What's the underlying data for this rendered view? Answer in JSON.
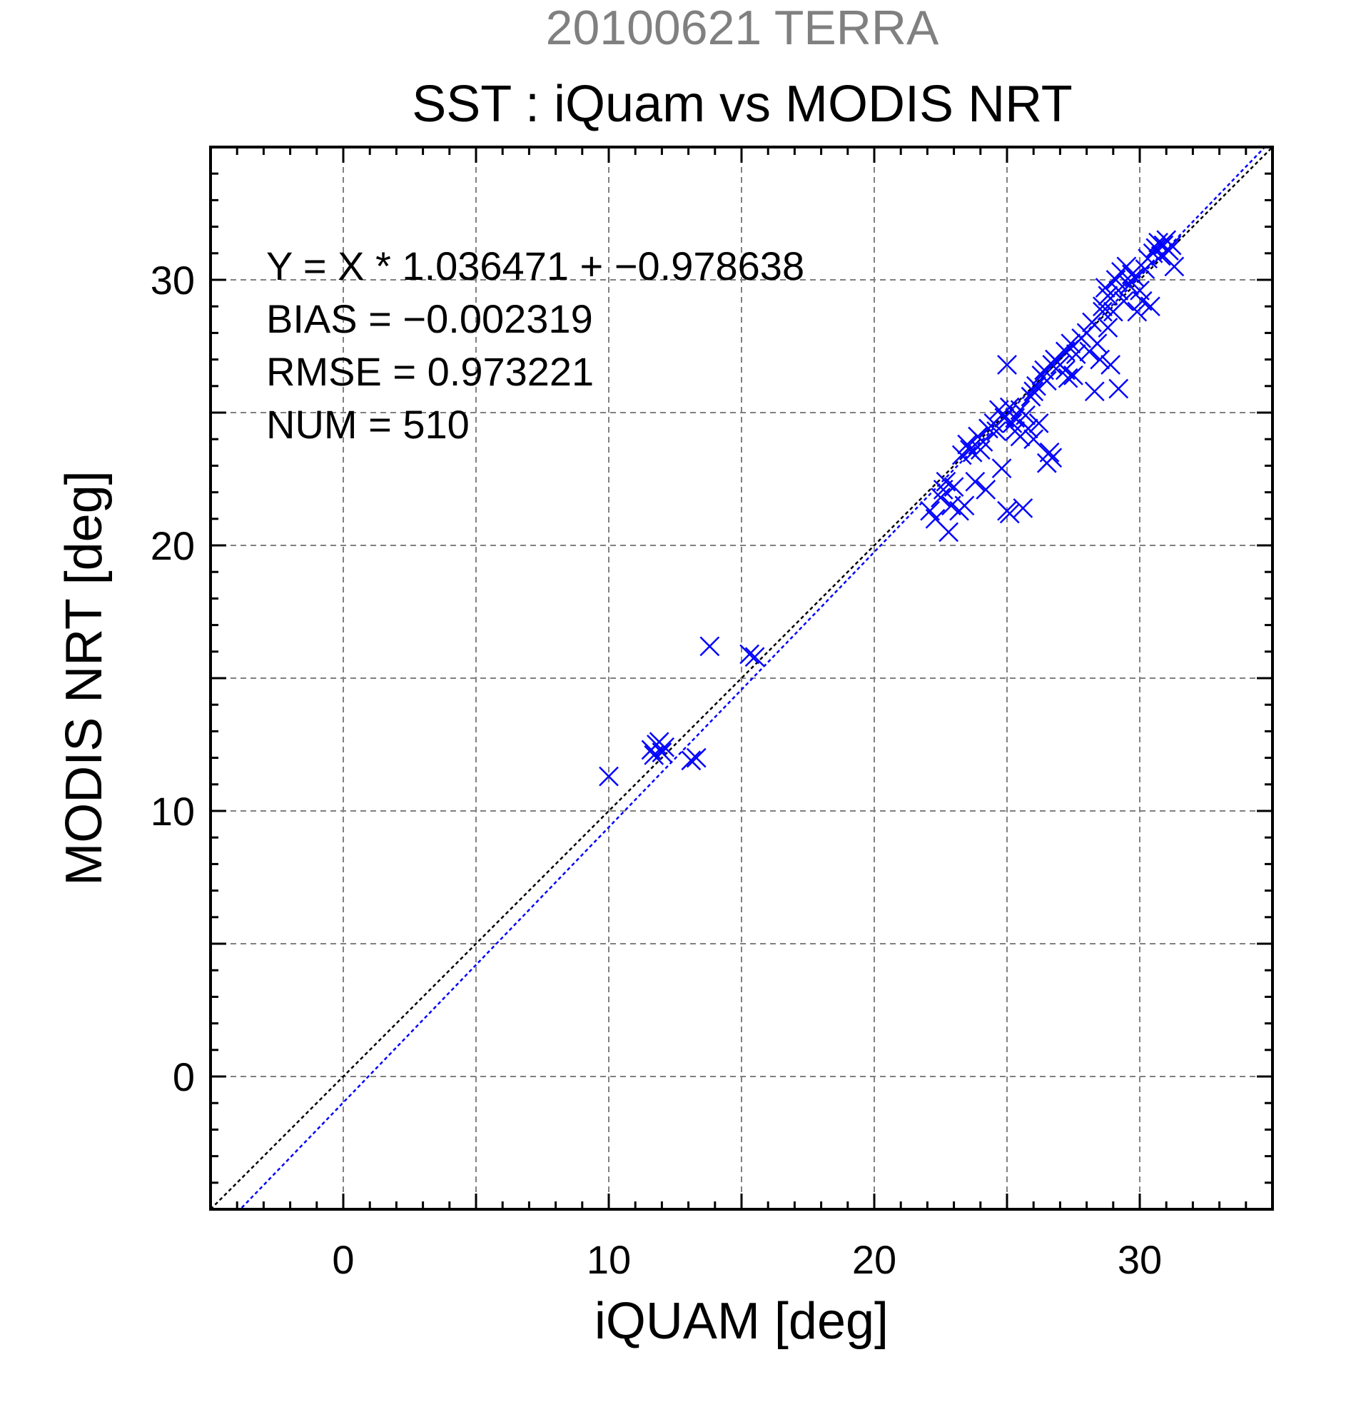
{
  "header": {
    "date_title": "20100621 TERRA",
    "main_title": "SST : iQuam vs MODIS NRT"
  },
  "colors": {
    "points": "#0000ff",
    "regression_line": "#0000ff",
    "identity_line": "#000000",
    "grid": "#808080",
    "date_title": "#808080"
  },
  "chart_data": {
    "type": "scatter",
    "title": "SST : iQuam vs MODIS NRT",
    "subtitle": "20100621 TERRA",
    "xlabel": "iQUAM [deg]",
    "ylabel": "MODIS NRT [deg]",
    "xlim": [
      -5,
      35
    ],
    "ylim": [
      -5,
      35
    ],
    "xticks": [
      0,
      10,
      20,
      30
    ],
    "yticks": [
      0,
      10,
      20,
      30
    ],
    "minor_tick_step": 1,
    "grid": true,
    "grid_step": 5,
    "marker": "x",
    "stats": [
      "Y = X * 1.036471 + −0.978638",
      "BIAS = −0.002319",
      "RMSE = 0.973221",
      "NUM = 510"
    ],
    "regression": {
      "slope": 1.036471,
      "intercept": -0.978638
    },
    "identity_line": {
      "slope": 1,
      "intercept": 0
    },
    "series": [
      {
        "points": [
          [
            10.0,
            11.3
          ],
          [
            11.6,
            12.3
          ],
          [
            11.8,
            12.5
          ],
          [
            12.0,
            12.2
          ],
          [
            11.9,
            12.6
          ],
          [
            11.7,
            12.1
          ],
          [
            12.1,
            12.4
          ],
          [
            13.1,
            11.9
          ],
          [
            13.3,
            12.0
          ],
          [
            13.8,
            16.2
          ],
          [
            15.3,
            15.9
          ],
          [
            15.5,
            15.8
          ],
          [
            22.1,
            21.3
          ],
          [
            22.3,
            21.0
          ],
          [
            22.5,
            21.8
          ],
          [
            22.6,
            22.1
          ],
          [
            22.8,
            20.5
          ],
          [
            22.9,
            21.5
          ],
          [
            23.2,
            21.3
          ],
          [
            23.4,
            21.5
          ],
          [
            22.7,
            22.4
          ],
          [
            23.0,
            22.2
          ],
          [
            23.3,
            23.4
          ],
          [
            23.5,
            23.8
          ],
          [
            23.7,
            23.5
          ],
          [
            23.9,
            24.1
          ],
          [
            24.1,
            23.9
          ],
          [
            24.3,
            24.4
          ],
          [
            24.0,
            23.6
          ],
          [
            23.6,
            23.6
          ],
          [
            23.8,
            22.4
          ],
          [
            24.2,
            22.1
          ],
          [
            24.8,
            22.9
          ],
          [
            25.0,
            21.3
          ],
          [
            25.1,
            21.2
          ],
          [
            25.6,
            21.4
          ],
          [
            25.3,
            24.3
          ],
          [
            25.5,
            24.1
          ],
          [
            24.5,
            24.6
          ],
          [
            24.7,
            25.1
          ],
          [
            24.9,
            24.8
          ],
          [
            25.1,
            25.2
          ],
          [
            25.3,
            24.8
          ],
          [
            25.5,
            25.1
          ],
          [
            25.7,
            24.9
          ],
          [
            24.6,
            24.3
          ],
          [
            25.2,
            24.6
          ],
          [
            26.5,
            23.1
          ],
          [
            26.6,
            23.5
          ],
          [
            26.7,
            23.3
          ],
          [
            25.8,
            24.4
          ],
          [
            26.0,
            24.0
          ],
          [
            26.2,
            24.6
          ],
          [
            25.9,
            25.6
          ],
          [
            26.1,
            26.0
          ],
          [
            26.3,
            26.4
          ],
          [
            26.5,
            26.2
          ],
          [
            26.7,
            26.8
          ],
          [
            26.4,
            26.6
          ],
          [
            26.0,
            25.8
          ],
          [
            25.0,
            26.8
          ],
          [
            26.8,
            27.0
          ],
          [
            27.0,
            26.8
          ],
          [
            27.2,
            27.3
          ],
          [
            27.4,
            27.6
          ],
          [
            27.6,
            27.2
          ],
          [
            27.8,
            27.8
          ],
          [
            27.3,
            26.3
          ],
          [
            27.5,
            26.4
          ],
          [
            27.2,
            26.6
          ],
          [
            28.0,
            28.0
          ],
          [
            28.2,
            28.4
          ],
          [
            28.4,
            27.6
          ],
          [
            28.6,
            28.8
          ],
          [
            28.8,
            28.2
          ],
          [
            28.1,
            27.3
          ],
          [
            28.5,
            27.0
          ],
          [
            28.3,
            25.8
          ],
          [
            28.9,
            26.8
          ],
          [
            29.2,
            25.9
          ],
          [
            28.6,
            29.0
          ],
          [
            28.8,
            29.4
          ],
          [
            29.0,
            28.8
          ],
          [
            29.2,
            29.6
          ],
          [
            29.4,
            29.2
          ],
          [
            29.6,
            29.8
          ],
          [
            29.1,
            30.0
          ],
          [
            29.3,
            30.3
          ],
          [
            28.7,
            29.7
          ],
          [
            29.8,
            30.1
          ],
          [
            30.0,
            29.6
          ],
          [
            30.2,
            30.4
          ],
          [
            29.9,
            28.8
          ],
          [
            30.1,
            29.2
          ],
          [
            30.4,
            29.0
          ],
          [
            30.3,
            30.8
          ],
          [
            30.5,
            31.0
          ],
          [
            30.7,
            31.4
          ],
          [
            30.9,
            31.3
          ],
          [
            31.0,
            31.5
          ],
          [
            31.2,
            31.3
          ],
          [
            30.6,
            31.2
          ],
          [
            31.1,
            31.1
          ],
          [
            30.8,
            30.9
          ],
          [
            31.3,
            30.5
          ],
          [
            29.5,
            30.5
          ],
          [
            29.7,
            30.2
          ]
        ]
      }
    ]
  }
}
